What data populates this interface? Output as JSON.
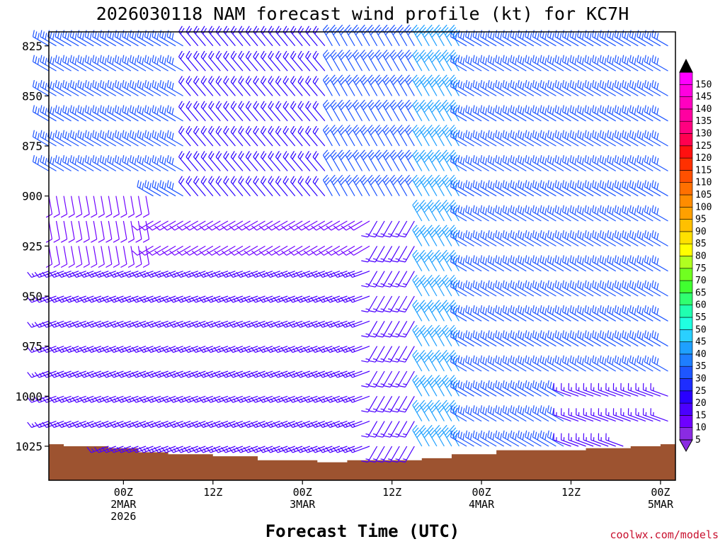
{
  "chart_data": {
    "type": "wind-barb-time-height",
    "title": "2026030118 NAM forecast wind profile (kt) for KC7H",
    "xlabel": "Forecast Time (UTC)",
    "credit": "coolwx.com/models",
    "y_axis": {
      "variable": "pressure (hPa)",
      "ylim": [
        1042,
        818
      ],
      "inverted": true,
      "ticks": [
        "825",
        "850",
        "875",
        "900",
        "925",
        "950",
        "975",
        "1000",
        "1025"
      ]
    },
    "x_axis": {
      "xlim_hours": [
        -10,
        74
      ],
      "step_hours": 1,
      "ticks": [
        {
          "hour": 0,
          "lines": [
            "00Z",
            "2MAR",
            "2026"
          ]
        },
        {
          "hour": 12,
          "lines": [
            "12Z"
          ]
        },
        {
          "hour": 24,
          "lines": [
            "00Z",
            "3MAR"
          ]
        },
        {
          "hour": 36,
          "lines": [
            "12Z"
          ]
        },
        {
          "hour": 48,
          "lines": [
            "00Z",
            "4MAR"
          ]
        },
        {
          "hour": 60,
          "lines": [
            "12Z"
          ]
        },
        {
          "hour": 72,
          "lines": [
            "00Z",
            "5MAR"
          ]
        }
      ]
    },
    "levels_hpa": [
      825,
      837.5,
      850,
      862.5,
      875,
      887.5,
      900,
      912.5,
      925,
      937.5,
      950,
      962.5,
      975,
      987.5,
      1000,
      1012.5,
      1025
    ],
    "wind_regimes": [
      {
        "time_start": -10,
        "time_end": 9,
        "p_top": 818,
        "p_bottom": 910,
        "direction_deg": 300,
        "speed_kt": 30
      },
      {
        "time_start": 9,
        "time_end": 28,
        "p_top": 818,
        "p_bottom": 910,
        "direction_deg": 320,
        "speed_kt": 20
      },
      {
        "time_start": -10,
        "time_end": 4,
        "p_top": 900,
        "p_bottom": 930,
        "direction_deg": 170,
        "speed_kt": 10
      },
      {
        "time_start": 4,
        "time_end": 34,
        "p_top": 910,
        "p_bottom": 930,
        "direction_deg": 240,
        "speed_kt": 10
      },
      {
        "time_start": -10,
        "time_end": 34,
        "p_top": 930,
        "p_bottom": 1030,
        "direction_deg": 250,
        "speed_kt": 15
      },
      {
        "time_start": 28,
        "time_end": 40,
        "p_top": 818,
        "p_bottom": 910,
        "direction_deg": 330,
        "speed_kt": 30
      },
      {
        "time_start": 34,
        "time_end": 42,
        "p_top": 910,
        "p_bottom": 1030,
        "direction_deg": 210,
        "speed_kt": 15
      },
      {
        "time_start": 40,
        "time_end": 46,
        "p_top": 818,
        "p_bottom": 1030,
        "direction_deg": 330,
        "speed_kt": 40
      },
      {
        "time_start": 46,
        "time_end": 74,
        "p_top": 818,
        "p_bottom": 1030,
        "direction_deg": 300,
        "speed_kt": 30
      },
      {
        "time_start": 60,
        "time_end": 74,
        "p_top": 990,
        "p_bottom": 1030,
        "direction_deg": 290,
        "speed_kt": 15
      }
    ],
    "terrain": {
      "color": "#9d5330",
      "surface_pressure": [
        {
          "hour": -10,
          "p": 1024
        },
        {
          "hour": -8,
          "p": 1025
        },
        {
          "hour": -2,
          "p": 1026
        },
        {
          "hour": 2,
          "p": 1028
        },
        {
          "hour": 6,
          "p": 1029
        },
        {
          "hour": 12,
          "p": 1030
        },
        {
          "hour": 18,
          "p": 1032
        },
        {
          "hour": 26,
          "p": 1033
        },
        {
          "hour": 30,
          "p": 1032
        },
        {
          "hour": 36,
          "p": 1032
        },
        {
          "hour": 40,
          "p": 1031
        },
        {
          "hour": 44,
          "p": 1029
        },
        {
          "hour": 50,
          "p": 1027
        },
        {
          "hour": 56,
          "p": 1027
        },
        {
          "hour": 62,
          "p": 1026
        },
        {
          "hour": 68,
          "p": 1025
        },
        {
          "hour": 72,
          "p": 1024
        },
        {
          "hour": 74,
          "p": 1024
        }
      ]
    },
    "colorbar": {
      "values": [
        "5",
        "10",
        "15",
        "20",
        "25",
        "30",
        "35",
        "40",
        "45",
        "50",
        "55",
        "60",
        "65",
        "70",
        "75",
        "80",
        "85",
        "90",
        "95",
        "100",
        "105",
        "110",
        "115",
        "120",
        "125",
        "130",
        "135",
        "140",
        "145",
        "150"
      ],
      "colors": [
        "#8a2be2",
        "#6f00ff",
        "#4b00ff",
        "#2900ff",
        "#1e2dff",
        "#1e56ff",
        "#1e7eff",
        "#1ea0ff",
        "#2ad0ff",
        "#20ffe0",
        "#20ffb0",
        "#30ff70",
        "#40ff30",
        "#70ff20",
        "#b0ff20",
        "#ffff00",
        "#ffe000",
        "#ffc000",
        "#ffa000",
        "#ff8c00",
        "#ff7000",
        "#ff5000",
        "#ff3000",
        "#ff1010",
        "#ff0050",
        "#ff0080",
        "#ff00a0",
        "#ff00c0",
        "#ff00e0",
        "#ff00ff"
      ],
      "end_colors": [
        "#8a2be2",
        "#000000"
      ]
    }
  }
}
